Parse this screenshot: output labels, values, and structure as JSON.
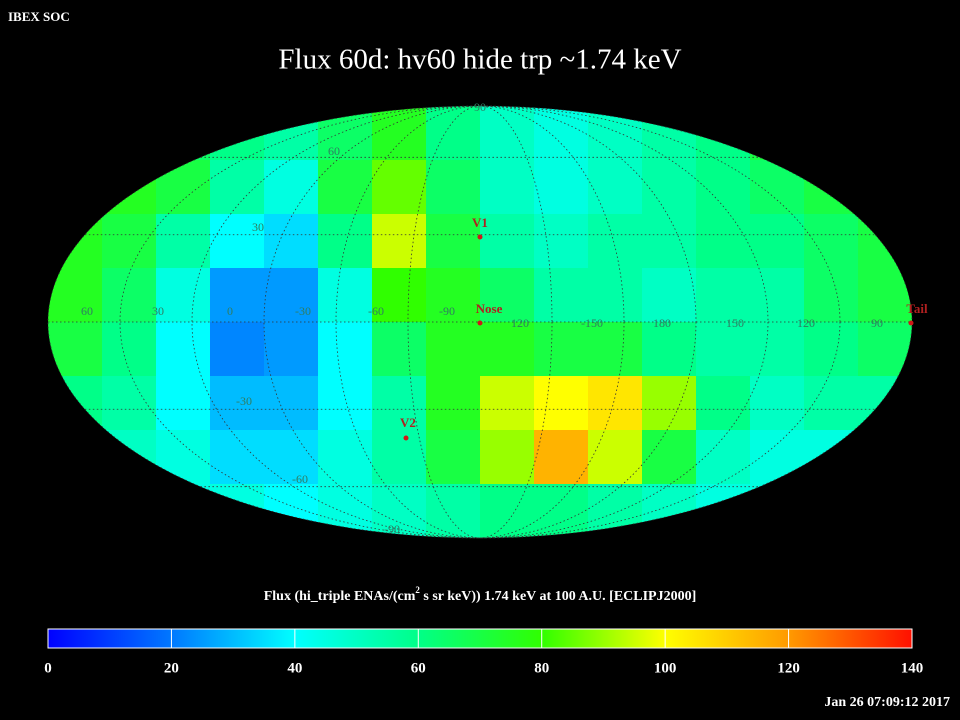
{
  "header": {
    "app": "IBEX SOC",
    "title": "Flux   60d: hv60 hide trp ~1.74 keV",
    "timestamp": "Jan 26 07:09:12 2017"
  },
  "map": {
    "longitude_labels": [
      "60",
      "30",
      "0",
      "-30",
      "-60",
      "-90",
      "120",
      "-150",
      "180",
      "150",
      "120",
      "90"
    ],
    "latitude_labels": [
      "90",
      "60",
      "30",
      "-30",
      "-60",
      "-90"
    ],
    "markers": [
      "V1",
      "Nose",
      "V2",
      "Tail"
    ],
    "flux": [
      [
        70,
        70,
        65,
        60,
        55,
        65,
        75,
        60,
        50,
        45,
        50,
        55,
        60,
        70,
        75,
        70
      ],
      [
        75,
        75,
        70,
        55,
        45,
        70,
        85,
        65,
        50,
        45,
        50,
        55,
        60,
        65,
        70,
        70
      ],
      [
        75,
        70,
        55,
        40,
        35,
        60,
        95,
        70,
        55,
        50,
        55,
        55,
        60,
        60,
        65,
        70
      ],
      [
        75,
        65,
        45,
        25,
        25,
        45,
        80,
        75,
        65,
        55,
        55,
        50,
        55,
        55,
        65,
        70
      ],
      [
        70,
        60,
        40,
        22,
        25,
        40,
        65,
        75,
        75,
        70,
        70,
        60,
        55,
        55,
        60,
        65
      ],
      [
        60,
        55,
        40,
        30,
        30,
        40,
        55,
        75,
        95,
        100,
        105,
        90,
        60,
        50,
        55,
        55
      ],
      [
        50,
        50,
        45,
        35,
        35,
        45,
        55,
        70,
        90,
        115,
        95,
        70,
        50,
        45,
        45,
        50
      ],
      [
        45,
        45,
        45,
        45,
        40,
        45,
        50,
        55,
        60,
        60,
        55,
        50,
        45,
        45,
        45,
        45
      ]
    ]
  },
  "colorbar": {
    "title_parts": [
      "Flux (hi_triple ENAs/(cm",
      "2",
      " s sr keV))  1.74 keV at 100 A.U. [ECLIPJ2000]"
    ],
    "lim": [
      0,
      140
    ],
    "ticks": [
      0,
      20,
      40,
      60,
      80,
      100,
      120,
      140
    ],
    "colors": [
      "#0000ff",
      "#0078ff",
      "#00ffff",
      "#00ff88",
      "#30ff00",
      "#ffff00",
      "#ff9a00",
      "#ff1000"
    ]
  }
}
